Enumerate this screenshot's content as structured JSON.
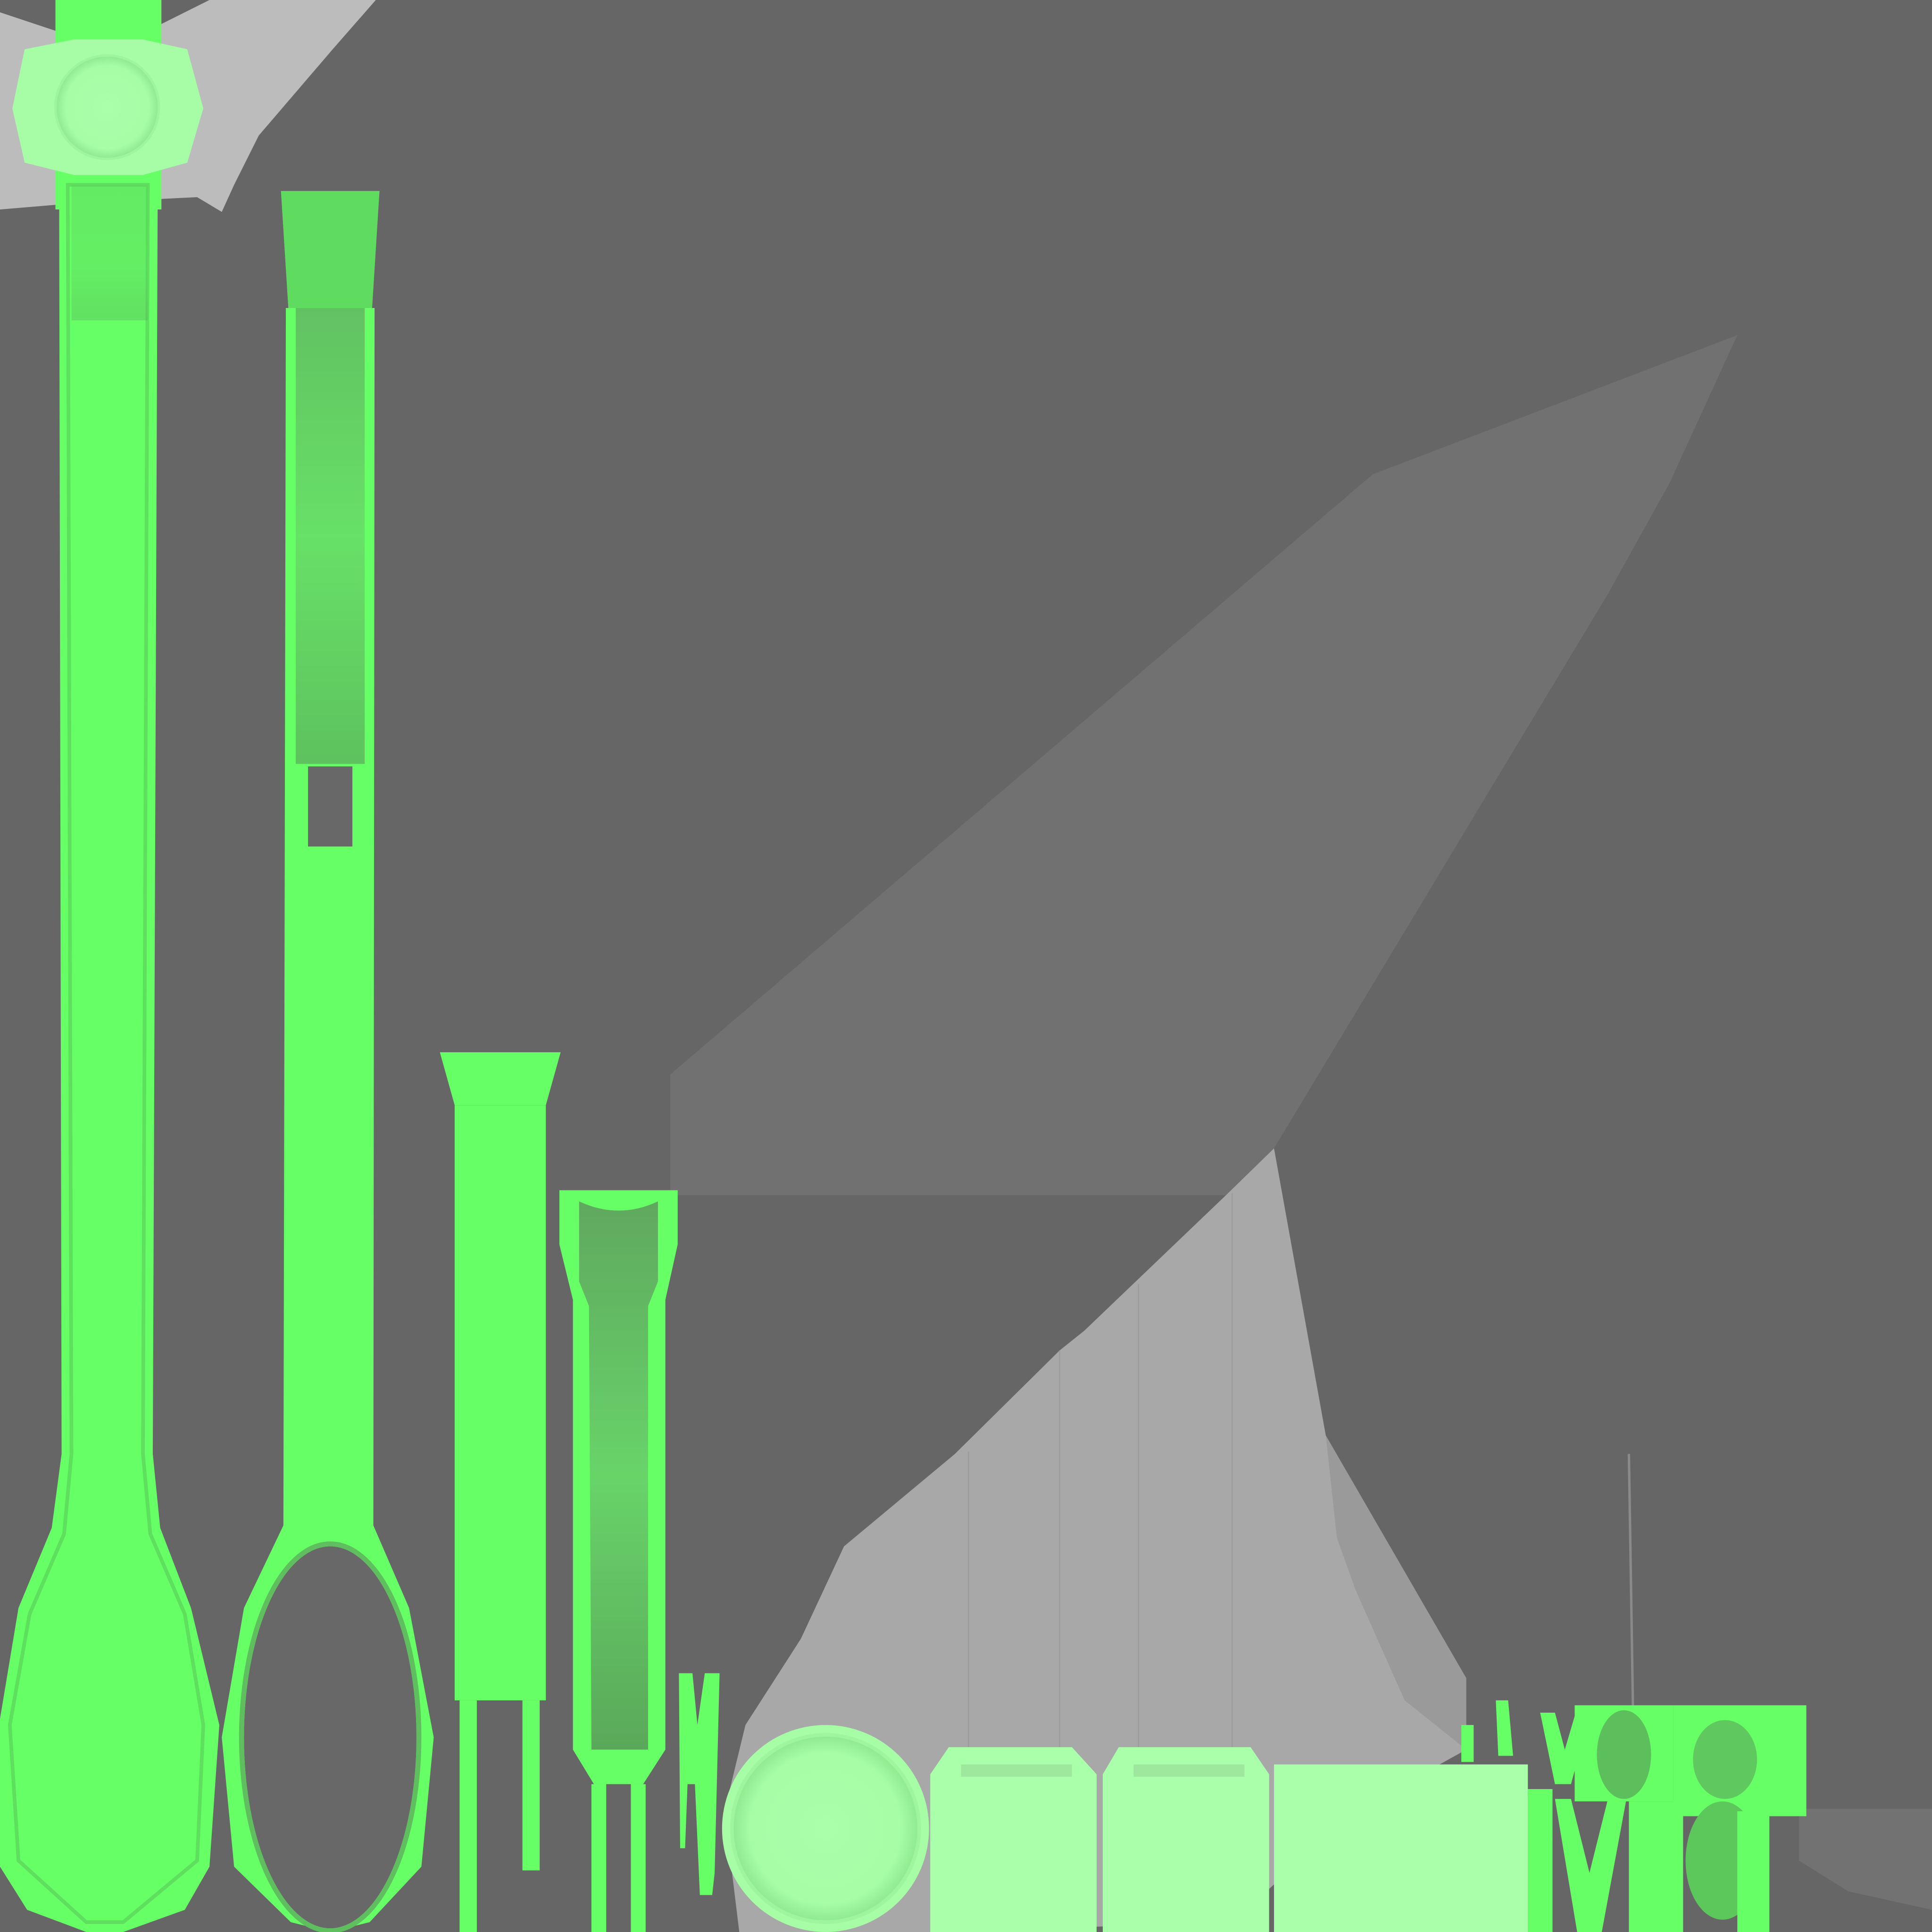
{
  "texture": {
    "colors": {
      "background": "#666666",
      "green": "#66ff66",
      "green_dark": "#5ed05e",
      "green_mid": "#6fe56f",
      "green_pale": "#aaffaa",
      "green_pale_edge": "#9ef59e",
      "grey_light": "#a8a8a8",
      "grey_lighter": "#bcbcbc",
      "grey_mid": "#717171",
      "grey_inner": "#686868",
      "shadow": "#606060"
    }
  }
}
